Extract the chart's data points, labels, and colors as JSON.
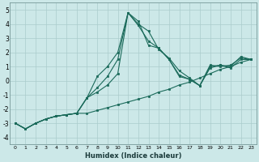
{
  "xlabel": "Humidex (Indice chaleur)",
  "ylabel": "",
  "background_color": "#cce8e8",
  "grid_color": "#aacccc",
  "line_color": "#1a6a5a",
  "xlim": [
    -0.5,
    23.5
  ],
  "ylim": [
    -4.5,
    5.5
  ],
  "xtick_labels": [
    "0",
    "1",
    "2",
    "3",
    "4",
    "5",
    "6",
    "7",
    "8",
    "9",
    "10",
    "11",
    "12",
    "13",
    "14",
    "15",
    "16",
    "17",
    "18",
    "19",
    "20",
    "21",
    "22",
    "23"
  ],
  "xticks": [
    0,
    1,
    2,
    3,
    4,
    5,
    6,
    7,
    8,
    9,
    10,
    11,
    12,
    13,
    14,
    15,
    16,
    17,
    18,
    19,
    20,
    21,
    22,
    23
  ],
  "yticks": [
    -4,
    -3,
    -2,
    -1,
    0,
    1,
    2,
    3,
    4,
    5
  ],
  "series": [
    {
      "x": [
        0,
        1,
        2,
        3,
        4,
        5,
        6,
        7,
        8,
        9,
        10,
        11,
        12,
        13,
        14,
        15,
        16,
        17,
        18,
        19,
        20,
        21,
        22,
        23
      ],
      "y": [
        -3.0,
        -3.4,
        -3.0,
        -2.7,
        -2.5,
        -2.4,
        -2.3,
        -2.3,
        -2.1,
        -1.9,
        -1.7,
        -1.5,
        -1.3,
        -1.1,
        -0.8,
        -0.6,
        -0.3,
        -0.1,
        0.2,
        0.5,
        0.8,
        1.0,
        1.3,
        1.5
      ]
    },
    {
      "x": [
        0,
        1,
        2,
        3,
        4,
        5,
        6,
        7,
        8,
        9,
        10,
        11,
        12,
        13,
        14,
        15,
        16,
        17,
        18,
        19,
        20,
        21,
        22,
        23
      ],
      "y": [
        -3.0,
        -3.4,
        -3.0,
        -2.7,
        -2.5,
        -2.4,
        -2.3,
        -1.2,
        -0.8,
        -0.3,
        0.5,
        4.8,
        4.0,
        3.5,
        2.2,
        1.6,
        0.7,
        0.2,
        -0.35,
        0.9,
        1.1,
        0.9,
        1.5,
        1.5
      ]
    },
    {
      "x": [
        0,
        1,
        2,
        3,
        4,
        5,
        6,
        7,
        8,
        9,
        10,
        11,
        12,
        13,
        14,
        15,
        16,
        17,
        18,
        19,
        20,
        21,
        22,
        23
      ],
      "y": [
        -3.0,
        -3.4,
        -3.0,
        -2.7,
        -2.5,
        -2.4,
        -2.3,
        -1.2,
        -0.5,
        0.3,
        1.5,
        4.8,
        3.9,
        2.8,
        2.3,
        1.5,
        0.4,
        0.1,
        -0.35,
        1.1,
        1.0,
        1.1,
        1.6,
        1.5
      ]
    },
    {
      "x": [
        0,
        1,
        2,
        3,
        4,
        5,
        6,
        7,
        8,
        9,
        10,
        11,
        12,
        13,
        14,
        15,
        16,
        17,
        18,
        19,
        20,
        21,
        22,
        23
      ],
      "y": [
        -3.0,
        -3.4,
        -3.0,
        -2.7,
        -2.5,
        -2.4,
        -2.3,
        -1.2,
        0.3,
        1.0,
        2.0,
        4.8,
        4.2,
        2.5,
        2.3,
        1.5,
        0.3,
        0.1,
        -0.35,
        1.0,
        1.1,
        1.0,
        1.7,
        1.5
      ]
    }
  ]
}
